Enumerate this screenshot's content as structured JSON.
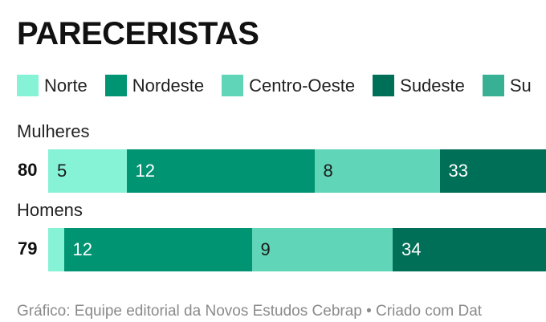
{
  "title": "PARECERISTAS",
  "footer": "Gráfico: Equipe editorial da Novos Estudos Cebrap • Criado com Dat",
  "chart_data": {
    "type": "bar",
    "stacked": true,
    "orientation": "horizontal",
    "title": "PARECERISTAS",
    "legend": [
      {
        "name": "Norte",
        "color": "#86f2d6"
      },
      {
        "name": "Nordeste",
        "color": "#009473"
      },
      {
        "name": "Centro-Oeste",
        "color": "#61d5b7"
      },
      {
        "name": "Sudeste",
        "color": "#006f57"
      },
      {
        "name": "Su",
        "color": "#38b093"
      }
    ],
    "rows": [
      {
        "label": "Mulheres",
        "total": "80",
        "segments": [
          {
            "series": "Norte",
            "value": 5,
            "label": "5",
            "color": "#86f2d6"
          },
          {
            "series": "Nordeste",
            "value": 12,
            "label": "12",
            "color": "#009473"
          },
          {
            "series": "Centro-Oeste",
            "value": 8,
            "label": "8",
            "color": "#61d5b7"
          },
          {
            "series": "Sudeste",
            "value": 33,
            "label": "33",
            "color": "#006f57"
          }
        ]
      },
      {
        "label": "Homens",
        "total": "79",
        "segments": [
          {
            "series": "Norte",
            "value": 1,
            "label": "",
            "color": "#86f2d6"
          },
          {
            "series": "Nordeste",
            "value": 12,
            "label": "12",
            "color": "#009473"
          },
          {
            "series": "Centro-Oeste",
            "value": 9,
            "label": "9",
            "color": "#61d5b7"
          },
          {
            "series": "Sudeste",
            "value": 34,
            "label": "34",
            "color": "#006f57"
          }
        ]
      }
    ]
  }
}
